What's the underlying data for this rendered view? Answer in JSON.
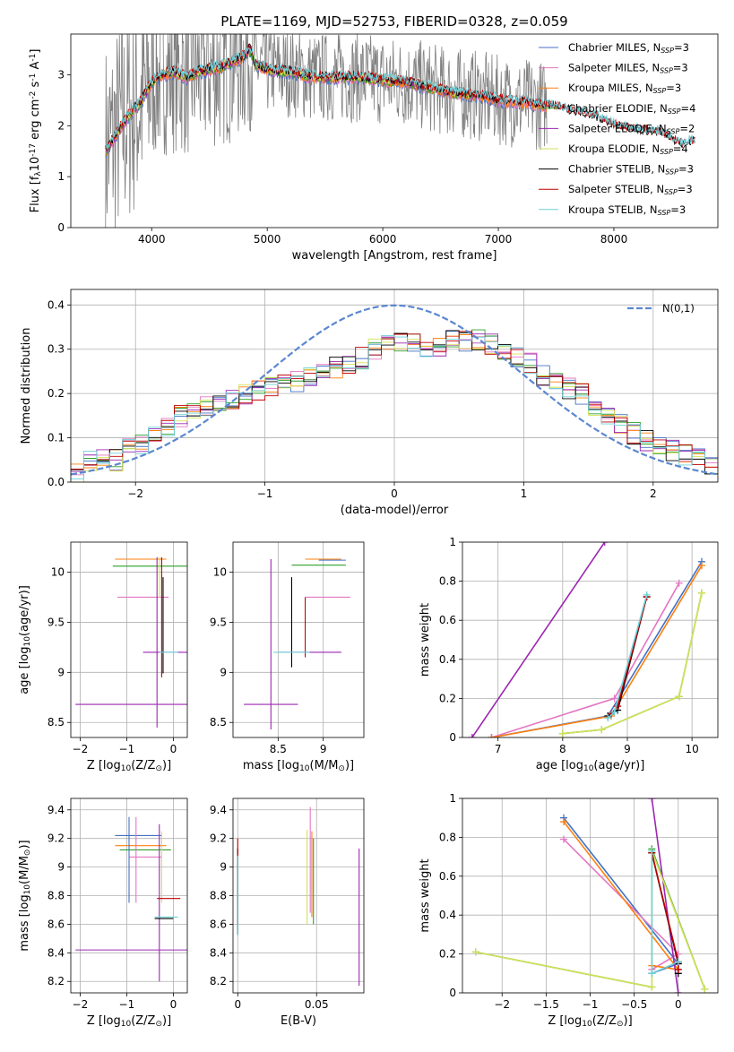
{
  "colors": {
    "Chabrier MILES": "#4472c4",
    "Salpeter MILES": "#e377c2",
    "Kroupa MILES": "#ff7f0e",
    "Chabrier ELODIE": "#2ca02c",
    "Salpeter ELODIE": "#9c27b0",
    "Kroupa ELODIE": "#d4e157",
    "Chabrier STELIB": "#000000",
    "Salpeter STELIB": "#c00000",
    "Kroupa STELIB": "#6fd0d8",
    "data": "#808080",
    "gauss": "#5b87d0"
  },
  "chart_data": [
    {
      "id": "spectrum",
      "type": "line",
      "title": "PLATE=1169, MJD=52753, FIBERID=0328, z=0.059",
      "xlabel": "wavelength [Angstrom, rest frame]",
      "ylabel": "Flux [f$_\\lambda$10$^{-17}$ erg cm$^{-2}$ s$^{-1}$ A$^{-1}$]",
      "xlim": [
        3300,
        8900
      ],
      "ylim": [
        0,
        3.8
      ],
      "xticks": [
        4000,
        5000,
        6000,
        7000,
        8000
      ],
      "yticks": [
        0,
        1,
        2,
        3
      ],
      "legend_position": "top-right",
      "legend": [
        {
          "model": "Chabrier MILES",
          "label": "Chabrier MILES, N",
          "sub": "SSP",
          "suffix": "=3"
        },
        {
          "model": "Salpeter MILES",
          "label": "Salpeter MILES, N",
          "sub": "SSP",
          "suffix": "=3"
        },
        {
          "model": "Kroupa MILES",
          "label": "Kroupa MILES, N",
          "sub": "SSP",
          "suffix": "=3"
        },
        {
          "model": "Chabrier ELODIE",
          "label": "Chabrier ELODIE, N",
          "sub": "SSP",
          "suffix": "=4"
        },
        {
          "model": "Salpeter ELODIE",
          "label": "Salpeter ELODIE, N",
          "sub": "SSP",
          "suffix": "=2"
        },
        {
          "model": "Kroupa ELODIE",
          "label": "Kroupa ELODIE, N",
          "sub": "SSP",
          "suffix": "=4"
        },
        {
          "model": "Chabrier STELIB",
          "label": "Chabrier STELIB, N",
          "sub": "SSP",
          "suffix": "=3"
        },
        {
          "model": "Salpeter STELIB",
          "label": "Salpeter STELIB, N",
          "sub": "SSP",
          "suffix": "=3"
        },
        {
          "model": "Kroupa STELIB",
          "label": "Kroupa STELIB, N",
          "sub": "SSP",
          "suffix": "=3"
        }
      ],
      "model_trend": [
        [
          3600,
          1.5
        ],
        [
          3700,
          1.85
        ],
        [
          3800,
          2.2
        ],
        [
          3900,
          2.45
        ],
        [
          4000,
          2.85
        ],
        [
          4100,
          3.0
        ],
        [
          4200,
          3.05
        ],
        [
          4300,
          2.95
        ],
        [
          4400,
          3.05
        ],
        [
          4500,
          3.1
        ],
        [
          4600,
          3.15
        ],
        [
          4700,
          3.25
        ],
        [
          4800,
          3.35
        ],
        [
          4850,
          3.5
        ],
        [
          4900,
          3.2
        ],
        [
          5000,
          3.1
        ],
        [
          5200,
          3.05
        ],
        [
          5400,
          2.95
        ],
        [
          5600,
          2.95
        ],
        [
          5800,
          2.95
        ],
        [
          6000,
          2.9
        ],
        [
          6200,
          2.85
        ],
        [
          6400,
          2.75
        ],
        [
          6600,
          2.65
        ],
        [
          6800,
          2.6
        ],
        [
          7000,
          2.5
        ],
        [
          7200,
          2.45
        ],
        [
          7400,
          2.4
        ],
        [
          7600,
          2.3
        ],
        [
          7800,
          2.2
        ],
        [
          8000,
          2.0
        ],
        [
          8200,
          1.9
        ],
        [
          8400,
          1.85
        ],
        [
          8600,
          1.6
        ],
        [
          8700,
          1.7
        ]
      ]
    },
    {
      "id": "residuals",
      "type": "line",
      "xlabel": "(data-model)/error",
      "ylabel": "Normed distribution",
      "xlim": [
        -2.5,
        2.5
      ],
      "ylim": [
        0,
        0.435
      ],
      "xticks": [
        -2,
        -1,
        0,
        1,
        2
      ],
      "yticks": [
        0.0,
        0.1,
        0.2,
        0.3,
        0.4
      ],
      "legend_position": "top-right",
      "legend": [
        {
          "label": "N(0,1)",
          "series": "gauss"
        }
      ],
      "bin_edges_range": [
        -2.5,
        2.5
      ],
      "n_bins": 50,
      "histogram": [
        0.02,
        0.05,
        0.055,
        0.05,
        0.075,
        0.085,
        0.1,
        0.125,
        0.15,
        0.16,
        0.17,
        0.18,
        0.19,
        0.2,
        0.21,
        0.215,
        0.22,
        0.225,
        0.235,
        0.25,
        0.26,
        0.27,
        0.28,
        0.3,
        0.31,
        0.32,
        0.32,
        0.3,
        0.3,
        0.33,
        0.32,
        0.32,
        0.31,
        0.29,
        0.28,
        0.27,
        0.24,
        0.22,
        0.21,
        0.2,
        0.17,
        0.15,
        0.13,
        0.11,
        0.095,
        0.085,
        0.07,
        0.06,
        0.05,
        0.04
      ]
    },
    {
      "id": "age-Z",
      "type": "scatter",
      "xlabel": "Z [log$_{10}$(Z/Z$_\\odot$)]",
      "ylabel": "age  [log$_{10}$(age/yr)]",
      "xlim": [
        -2.2,
        0.3
      ],
      "ylim": [
        8.35,
        10.3
      ],
      "xticks": [
        -2,
        -1,
        0
      ],
      "yticks": [
        8.5,
        9.0,
        9.5,
        10.0
      ],
      "errorbars": [
        {
          "model": "Chabrier MILES",
          "x": -0.75,
          "xerr": 0.45,
          "y": 10.13,
          "yerr": 0.0
        },
        {
          "model": "Salpeter MILES",
          "x": -0.6,
          "xerr": 0.0,
          "y": 9.75,
          "yerr": 0.0
        },
        {
          "model": "Salpeter MILES",
          "x": -0.65,
          "xerr": 0.55,
          "y": 9.75,
          "yerr": 0.0
        },
        {
          "model": "Kroupa MILES",
          "x": -0.7,
          "xerr": 0.55,
          "y": 10.13,
          "yerr": 0.0
        },
        {
          "model": "Chabrier ELODIE",
          "x": -0.5,
          "xerr": 0.8,
          "y": 10.06,
          "yerr": 0.0
        },
        {
          "model": "Salpeter ELODIE",
          "x": -0.15,
          "xerr": 0.5,
          "y": 9.2,
          "yerr": 0.0
        },
        {
          "model": "Kroupa ELODIE",
          "x": -0.3,
          "xerr": 0.0,
          "y": 9.95,
          "yerr": 0.2
        },
        {
          "model": "Chabrier STELIB",
          "x": -0.22,
          "xerr": 0.0,
          "y": 9.47,
          "yerr": 0.48
        },
        {
          "model": "Salpeter STELIB",
          "x": -0.25,
          "xerr": 0.0,
          "y": 9.55,
          "yerr": 0.6
        },
        {
          "model": "Kroupa STELIB",
          "x": -0.1,
          "xerr": 0.2,
          "y": 9.2,
          "yerr": 0.0
        },
        {
          "model": "Salpeter ELODIE",
          "x": -0.9,
          "xerr": 1.2,
          "y": 8.68,
          "yerr": 0.0
        },
        {
          "model": "Salpeter ELODIE",
          "x": -0.35,
          "xerr": 0.0,
          "y": 9.3,
          "yerr": 0.85
        }
      ]
    },
    {
      "id": "age-mass",
      "type": "scatter",
      "xlabel": "mass [log$_{10}$(M/M$_\\odot$)]",
      "ylabel": "",
      "xlim": [
        8.0,
        9.45
      ],
      "ylim": [
        8.35,
        10.3
      ],
      "xticks": [
        8.5,
        9.0
      ],
      "yticks": [
        8.5,
        9.0,
        9.5,
        10.0
      ],
      "errorbars": [
        {
          "model": "Chabrier MILES",
          "x": 9.1,
          "xerr": 0.15,
          "y": 10.12,
          "yerr": 0.0
        },
        {
          "model": "Salpeter MILES",
          "x": 9.15,
          "xerr": 0.0,
          "y": 9.75,
          "yerr": 0.0
        },
        {
          "model": "Salpeter MILES",
          "x": 9.05,
          "xerr": 0.25,
          "y": 9.75,
          "yerr": 0.0
        },
        {
          "model": "Kroupa MILES",
          "x": 9.0,
          "xerr": 0.2,
          "y": 10.13,
          "yerr": 0.0
        },
        {
          "model": "Chabrier ELODIE",
          "x": 8.95,
          "xerr": 0.3,
          "y": 10.07,
          "yerr": 0.0
        },
        {
          "model": "Salpeter ELODIE",
          "x": 8.85,
          "xerr": 0.35,
          "y": 9.2,
          "yerr": 0.0
        },
        {
          "model": "Kroupa ELODIE",
          "x": 9.1,
          "xerr": 0.0,
          "y": 10.05,
          "yerr": 0.0
        },
        {
          "model": "Chabrier STELIB",
          "x": 8.65,
          "xerr": 0.0,
          "y": 9.5,
          "yerr": 0.45
        },
        {
          "model": "Salpeter STELIB",
          "x": 8.8,
          "xerr": 0.0,
          "y": 9.45,
          "yerr": 0.3
        },
        {
          "model": "Kroupa STELIB",
          "x": 8.65,
          "xerr": 0.2,
          "y": 9.2,
          "yerr": 0.0
        },
        {
          "model": "Salpeter ELODIE",
          "x": 8.42,
          "xerr": 0.0,
          "y": 9.28,
          "yerr": 0.85
        },
        {
          "model": "Salpeter ELODIE",
          "x": 8.42,
          "xerr": 0.3,
          "y": 8.68,
          "yerr": 0.0
        }
      ]
    },
    {
      "id": "massweight-age",
      "type": "line",
      "xlabel": "age  [log$_{10}$(age/yr)]",
      "ylabel": "mass weight",
      "xlim": [
        6.45,
        10.4
      ],
      "ylim": [
        0.0,
        1.0
      ],
      "xticks": [
        7,
        8,
        9,
        10
      ],
      "yticks": [
        0.0,
        0.2,
        0.4,
        0.6,
        0.8,
        1.0
      ],
      "series": [
        {
          "model": "Chabrier MILES",
          "x": [
            6.9,
            8.7,
            10.15
          ],
          "y": [
            0.0,
            0.11,
            0.9
          ]
        },
        {
          "model": "Salpeter MILES",
          "x": [
            6.9,
            8.8,
            9.8
          ],
          "y": [
            0.0,
            0.2,
            0.79
          ]
        },
        {
          "model": "Kroupa MILES",
          "x": [
            6.9,
            8.75,
            10.15
          ],
          "y": [
            0.0,
            0.11,
            0.88
          ]
        },
        {
          "model": "Chabrier ELODIE",
          "x": [
            8.0,
            8.6,
            9.8,
            10.15
          ],
          "y": [
            0.02,
            0.04,
            0.21,
            0.74
          ]
        },
        {
          "model": "Salpeter ELODIE",
          "x": [
            6.6,
            8.65
          ],
          "y": [
            0.0,
            1.0
          ]
        },
        {
          "model": "Kroupa ELODIE",
          "x": [
            8.0,
            8.6,
            9.8,
            10.15
          ],
          "y": [
            0.02,
            0.04,
            0.21,
            0.74
          ]
        },
        {
          "model": "Chabrier STELIB",
          "x": [
            8.7,
            8.85,
            9.3
          ],
          "y": [
            0.11,
            0.14,
            0.72
          ]
        },
        {
          "model": "Salpeter STELIB",
          "x": [
            8.75,
            8.85,
            9.3
          ],
          "y": [
            0.12,
            0.16,
            0.72
          ]
        },
        {
          "model": "Kroupa STELIB",
          "x": [
            8.7,
            8.8,
            9.3
          ],
          "y": [
            0.1,
            0.13,
            0.73
          ]
        }
      ]
    },
    {
      "id": "mass-Z",
      "type": "scatter",
      "xlabel": "Z [log$_{10}$(Z/Z$_\\odot$)]",
      "ylabel": "mass [log$_{10}$(M/M$_\\odot$)]",
      "xlim": [
        -2.2,
        0.3
      ],
      "ylim": [
        8.12,
        9.48
      ],
      "xticks": [
        -2,
        -1,
        0
      ],
      "yticks": [
        8.2,
        8.4,
        8.6,
        8.8,
        9.0,
        9.2,
        9.4
      ],
      "errorbars": [
        {
          "model": "Chabrier MILES",
          "x": -0.75,
          "xerr": 0.5,
          "y": 9.22,
          "yerr": 0.0
        },
        {
          "model": "Salpeter MILES",
          "x": -0.6,
          "xerr": 0.35,
          "y": 9.07,
          "yerr": 0.0
        },
        {
          "model": "Kroupa MILES",
          "x": -0.7,
          "xerr": 0.55,
          "y": 9.15,
          "yerr": 0.0
        },
        {
          "model": "Chabrier ELODIE",
          "x": -0.6,
          "xerr": 0.55,
          "y": 9.12,
          "yerr": 0.0
        },
        {
          "model": "Salpeter ELODIE",
          "x": -0.3,
          "xerr": 0.0,
          "y": 8.75,
          "yerr": 0.55
        },
        {
          "model": "Kroupa ELODIE",
          "x": -0.25,
          "xerr": 0.0,
          "y": 9.0,
          "yerr": 0.25
        },
        {
          "model": "Chabrier STELIB",
          "x": -0.2,
          "xerr": 0.2,
          "y": 8.64,
          "yerr": 0.0
        },
        {
          "model": "Salpeter STELIB",
          "x": -0.1,
          "xerr": 0.25,
          "y": 8.78,
          "yerr": 0.0
        },
        {
          "model": "Kroupa STELIB",
          "x": -0.15,
          "xerr": 0.25,
          "y": 8.65,
          "yerr": 0.0
        },
        {
          "model": "Salpeter ELODIE",
          "x": -0.9,
          "xerr": 1.2,
          "y": 8.42,
          "yerr": 0.0
        },
        {
          "model": "Salpeter MILES",
          "x": -0.8,
          "xerr": 0.0,
          "y": 9.05,
          "yerr": 0.3
        },
        {
          "model": "Chabrier MILES",
          "x": -0.95,
          "xerr": 0.0,
          "y": 9.05,
          "yerr": 0.3
        }
      ]
    },
    {
      "id": "mass-ebv",
      "type": "scatter",
      "xlabel": "E(B-V)",
      "ylabel": "",
      "xlim": [
        -0.003,
        0.08
      ],
      "ylim": [
        8.12,
        9.48
      ],
      "xticks": [
        0.0,
        0.05
      ],
      "yticks": [
        8.2,
        8.4,
        8.6,
        8.8,
        9.0,
        9.2,
        9.4
      ],
      "errorbars": [
        {
          "model": "Chabrier STELIB",
          "x": 0.0,
          "xerr": 0.0,
          "y": 8.83,
          "yerr": 0.3
        },
        {
          "model": "Salpeter STELIB",
          "x": 0.0,
          "xerr": 0.0,
          "y": 8.9,
          "yerr": 0.3
        },
        {
          "model": "Kroupa STELIB",
          "x": 0.0,
          "xerr": 0.0,
          "y": 8.8,
          "yerr": 0.28
        },
        {
          "model": "Kroupa ELODIE",
          "x": 0.044,
          "xerr": 0.0,
          "y": 8.93,
          "yerr": 0.33
        },
        {
          "model": "Salpeter MILES",
          "x": 0.046,
          "xerr": 0.0,
          "y": 9.05,
          "yerr": 0.37
        },
        {
          "model": "Kroupa MILES",
          "x": 0.047,
          "xerr": 0.0,
          "y": 8.95,
          "yerr": 0.3
        },
        {
          "model": "Chabrier ELODIE",
          "x": 0.048,
          "xerr": 0.0,
          "y": 8.9,
          "yerr": 0.3
        },
        {
          "model": "Salpeter ELODIE",
          "x": 0.077,
          "xerr": 0.0,
          "y": 8.65,
          "yerr": 0.48
        }
      ]
    },
    {
      "id": "massweight-Z",
      "type": "line",
      "xlabel": "Z [log$_{10}$(Z/Z$_\\odot$)]",
      "ylabel": "mass weight",
      "xlim": [
        -2.45,
        0.45
      ],
      "ylim": [
        0.0,
        1.0
      ],
      "xticks": [
        -2.0,
        -1.5,
        -1.0,
        -0.5,
        0.0
      ],
      "yticks": [
        0.0,
        0.2,
        0.4,
        0.6,
        0.8,
        1.0
      ],
      "series": [
        {
          "model": "Chabrier MILES",
          "x": [
            -1.3,
            0.0,
            -0.3
          ],
          "y": [
            0.9,
            0.15,
            0.1
          ]
        },
        {
          "model": "Salpeter MILES",
          "x": [
            -1.3,
            0.0,
            -0.3
          ],
          "y": [
            0.79,
            0.2,
            0.12
          ]
        },
        {
          "model": "Kroupa MILES",
          "x": [
            -1.3,
            0.0,
            -0.3
          ],
          "y": [
            0.88,
            0.12,
            0.14
          ]
        },
        {
          "model": "Chabrier ELODIE",
          "x": [
            -2.3,
            -0.3,
            -0.3,
            0.3
          ],
          "y": [
            0.21,
            0.03,
            0.74,
            0.02
          ]
        },
        {
          "model": "Salpeter ELODIE",
          "x": [
            -0.3,
            0.0
          ],
          "y": [
            1.0,
            0.0
          ]
        },
        {
          "model": "Kroupa ELODIE",
          "x": [
            -2.3,
            -0.3,
            -0.3,
            0.3
          ],
          "y": [
            0.21,
            0.03,
            0.73,
            0.02
          ]
        },
        {
          "model": "Chabrier STELIB",
          "x": [
            -0.3,
            0.0,
            0.0
          ],
          "y": [
            0.72,
            0.15,
            0.1
          ]
        },
        {
          "model": "Salpeter STELIB",
          "x": [
            -0.3,
            0.0,
            0.0
          ],
          "y": [
            0.72,
            0.16,
            0.12
          ]
        },
        {
          "model": "Kroupa STELIB",
          "x": [
            -0.3,
            -0.3,
            0.0
          ],
          "y": [
            0.73,
            0.1,
            0.16
          ]
        }
      ]
    }
  ]
}
